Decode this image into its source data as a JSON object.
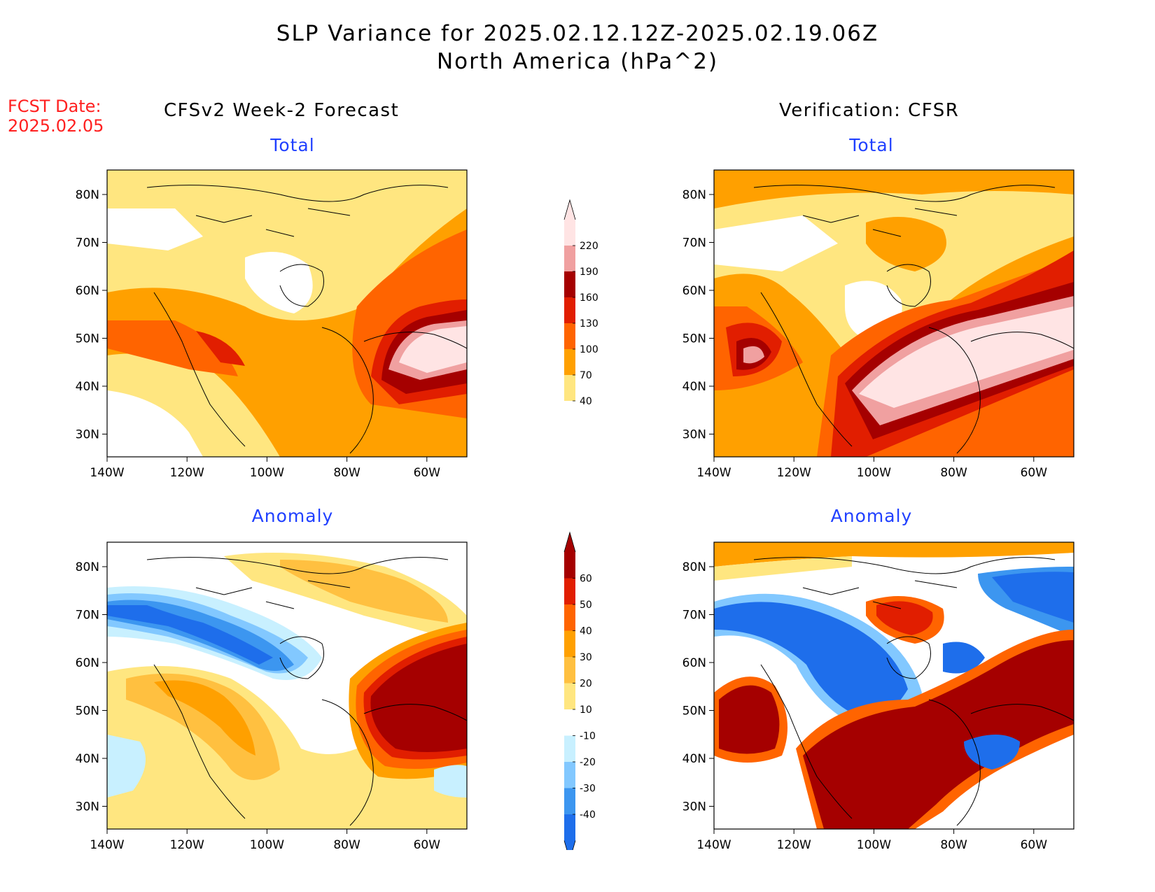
{
  "title": {
    "line1": "SLP Variance for 2025.02.12.12Z-2025.02.19.06Z",
    "line2": "North America (hPa^2)"
  },
  "fcst_date": {
    "label": "FCST Date:",
    "value": "2025.02.05"
  },
  "columns": {
    "left": "CFSv2 Week-2 Forecast",
    "right": "Verification: CFSR"
  },
  "panels": [
    {
      "id": "fcst-total",
      "title": "Total"
    },
    {
      "id": "verif-total",
      "title": "Total"
    },
    {
      "id": "fcst-anomaly",
      "title": "Anomaly"
    },
    {
      "id": "verif-anomaly",
      "title": "Anomaly"
    }
  ],
  "axes": {
    "lat_labels": [
      "80N",
      "70N",
      "60N",
      "50N",
      "40N",
      "30N"
    ],
    "lon_labels": [
      "140W",
      "120W",
      "100W",
      "80W",
      "60W"
    ]
  },
  "colorbars": {
    "total": {
      "labels": [
        "40",
        "70",
        "100",
        "130",
        "160",
        "190",
        "220"
      ],
      "colors": [
        "#ffffff",
        "#ffe680",
        "#ffa000",
        "#ff6400",
        "#e11e00",
        "#a50000",
        "#f0a0a0",
        "#ffe4e4"
      ]
    },
    "anomaly": {
      "labels": [
        "-40",
        "-30",
        "-20",
        "-10",
        "10",
        "20",
        "30",
        "40",
        "50",
        "60"
      ],
      "colors": [
        "#1e6eeb",
        "#3c96f0",
        "#82c8ff",
        "#c8f0ff",
        "#ffffff",
        "#ffe680",
        "#ffc040",
        "#ffa000",
        "#ff6400",
        "#e11e00",
        "#a50000"
      ]
    }
  }
}
